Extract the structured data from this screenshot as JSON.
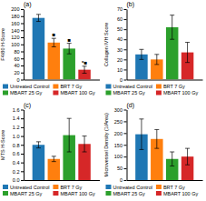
{
  "chart_data": [
    {
      "type": "bar",
      "title": "(a)",
      "ylabel": "F4/80 H-Score",
      "categories": [
        null
      ],
      "series": [
        {
          "name": "Untreated Control",
          "values": [
            175
          ],
          "errors": [
            10
          ]
        },
        {
          "name": "BRT 7 Gy",
          "values": [
            105
          ],
          "errors": [
            12
          ],
          "annotations": [
            "■"
          ]
        },
        {
          "name": "MBART 25 Gy",
          "values": [
            88
          ],
          "errors": [
            15
          ],
          "annotations": [
            "■"
          ]
        },
        {
          "name": "MBART 100 Gy",
          "values": [
            28
          ],
          "errors": [
            10
          ],
          "annotations": [
            "*■"
          ]
        }
      ],
      "ylim": [
        0,
        200
      ],
      "yticks": [
        0,
        20,
        40,
        60,
        80,
        100,
        120,
        140,
        160,
        180,
        200
      ],
      "legend": "bottom"
    },
    {
      "type": "bar",
      "title": "(b)",
      "ylabel": "Collagen IVH Score",
      "categories": [
        null
      ],
      "series": [
        {
          "name": "Untreated Control",
          "values": [
            25
          ],
          "errors": [
            5
          ]
        },
        {
          "name": "BRT 7 Gy",
          "values": [
            20
          ],
          "errors": [
            5
          ]
        },
        {
          "name": "MBART 25 Gy",
          "values": [
            52
          ],
          "errors": [
            12
          ]
        },
        {
          "name": "MBART 100 Gy",
          "values": [
            27
          ],
          "errors": [
            10
          ]
        }
      ],
      "ylim": [
        0,
        70
      ],
      "yticks": [
        0,
        10,
        20,
        30,
        40,
        50,
        60,
        70
      ],
      "legend": "bottom"
    },
    {
      "type": "bar",
      "title": "(c)",
      "ylabel": "MTS H-Score",
      "categories": [
        null
      ],
      "series": [
        {
          "name": "Untreated Control",
          "values": [
            0.8
          ],
          "errors": [
            0.07
          ]
        },
        {
          "name": "BRT 7 Gy",
          "values": [
            0.48
          ],
          "errors": [
            0.06
          ]
        },
        {
          "name": "MBART 25 Gy",
          "values": [
            1.02
          ],
          "errors": [
            0.38
          ]
        },
        {
          "name": "MBART 100 Gy",
          "values": [
            0.82
          ],
          "errors": [
            0.18
          ]
        }
      ],
      "ylim": [
        0,
        1.6
      ],
      "yticks": [
        {
          "value": 0,
          "label": "0.0"
        },
        0.2,
        0.4,
        0.6,
        0.8,
        {
          "value": 1.0,
          "label": "1.0"
        },
        1.2,
        1.4,
        1.6
      ],
      "legend": "bottom"
    },
    {
      "type": "bar",
      "title": "(d)",
      "ylabel": "Microvessel Density (1/Area)",
      "categories": [
        null
      ],
      "series": [
        {
          "name": "Untreated Control",
          "values": [
            195
          ],
          "errors": [
            65
          ]
        },
        {
          "name": "BRT 7 Gy",
          "values": [
            175
          ],
          "errors": [
            40
          ]
        },
        {
          "name": "MBART 25 Gy",
          "values": [
            90
          ],
          "errors": [
            30
          ]
        },
        {
          "name": "MBART 100 Gy",
          "values": [
            100
          ],
          "errors": [
            35
          ]
        }
      ],
      "ylim": [
        0,
        300
      ],
      "yticks": [
        0,
        50,
        100,
        150,
        200,
        250,
        300
      ],
      "legend": "bottom"
    }
  ]
}
